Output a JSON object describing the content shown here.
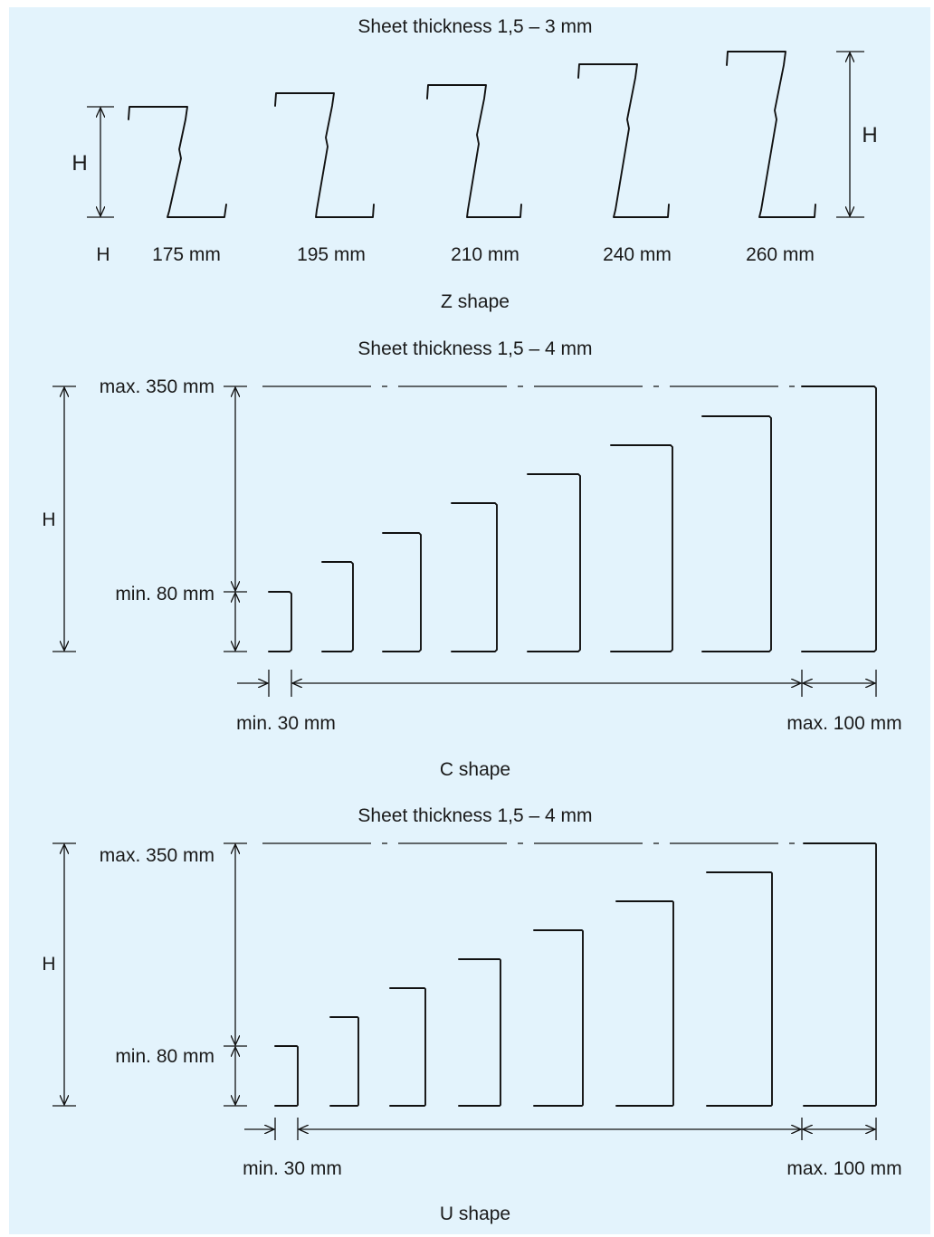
{
  "colors": {
    "background": "#e3f3fc",
    "ink": "#111111"
  },
  "z_section": {
    "thickness": "Sheet thickness 1,5 – 3 mm",
    "h_left": "H",
    "h_right": "H",
    "row_label": "H",
    "heights": [
      "175 mm",
      "195 mm",
      "210 mm",
      "240 mm",
      "260 mm"
    ],
    "caption": "Z shape"
  },
  "c_section": {
    "thickness": "Sheet thickness 1,5 – 4 mm",
    "max_label": "max. 350 mm",
    "min_label": "min. 80 mm",
    "h_label": "H",
    "min_width": "min. 30 mm",
    "max_width": "max. 100 mm",
    "caption": "C shape"
  },
  "u_section": {
    "thickness": "Sheet thickness 1,5 – 4 mm",
    "max_label": "max. 350 mm",
    "min_label": "min. 80 mm",
    "h_label": "H",
    "min_width": "min. 30 mm",
    "max_width": "max. 100 mm",
    "caption": "U shape"
  }
}
